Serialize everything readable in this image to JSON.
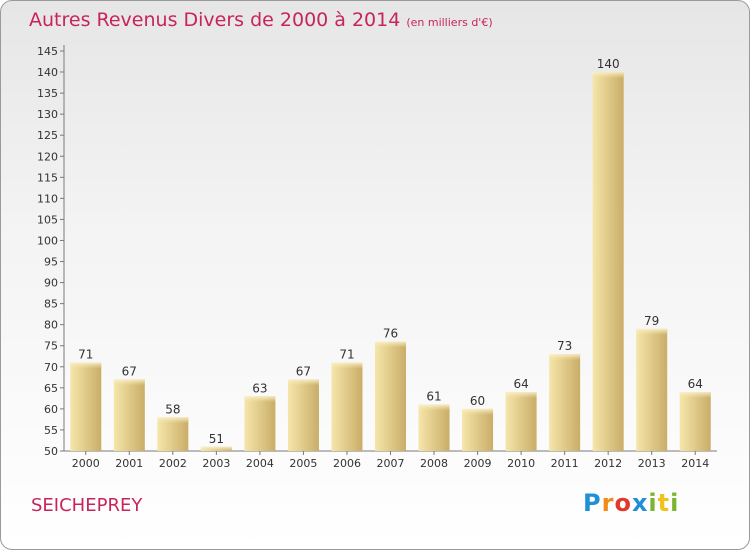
{
  "header": {
    "title": "Autres Revenus Divers de 2000 à 2014",
    "unit": "(en milliers d'€)"
  },
  "footer": {
    "commune": "SEICHEPREY",
    "logo_letters": [
      "P",
      "r",
      "o",
      "x",
      "i",
      "t",
      "i"
    ]
  },
  "colors": {
    "title": "#c8245a",
    "bar_light": "#f4e0a0",
    "bar_dark": "#c7ac66",
    "axis": "#7a7a7a"
  },
  "chart_data": {
    "type": "bar",
    "title": "Autres Revenus Divers de 2000 à 2014",
    "xlabel": "",
    "ylabel": "",
    "categories": [
      "2000",
      "2001",
      "2002",
      "2003",
      "2004",
      "2005",
      "2006",
      "2007",
      "2008",
      "2009",
      "2010",
      "2011",
      "2012",
      "2013",
      "2014"
    ],
    "values": [
      71,
      67,
      58,
      51,
      63,
      67,
      71,
      76,
      61,
      60,
      64,
      73,
      140,
      79,
      64
    ],
    "ylim": [
      50,
      145
    ],
    "yticks": [
      50,
      55,
      60,
      65,
      70,
      75,
      80,
      85,
      90,
      95,
      100,
      105,
      110,
      115,
      120,
      125,
      130,
      135,
      140,
      145
    ],
    "grid": false,
    "legend": "none"
  }
}
